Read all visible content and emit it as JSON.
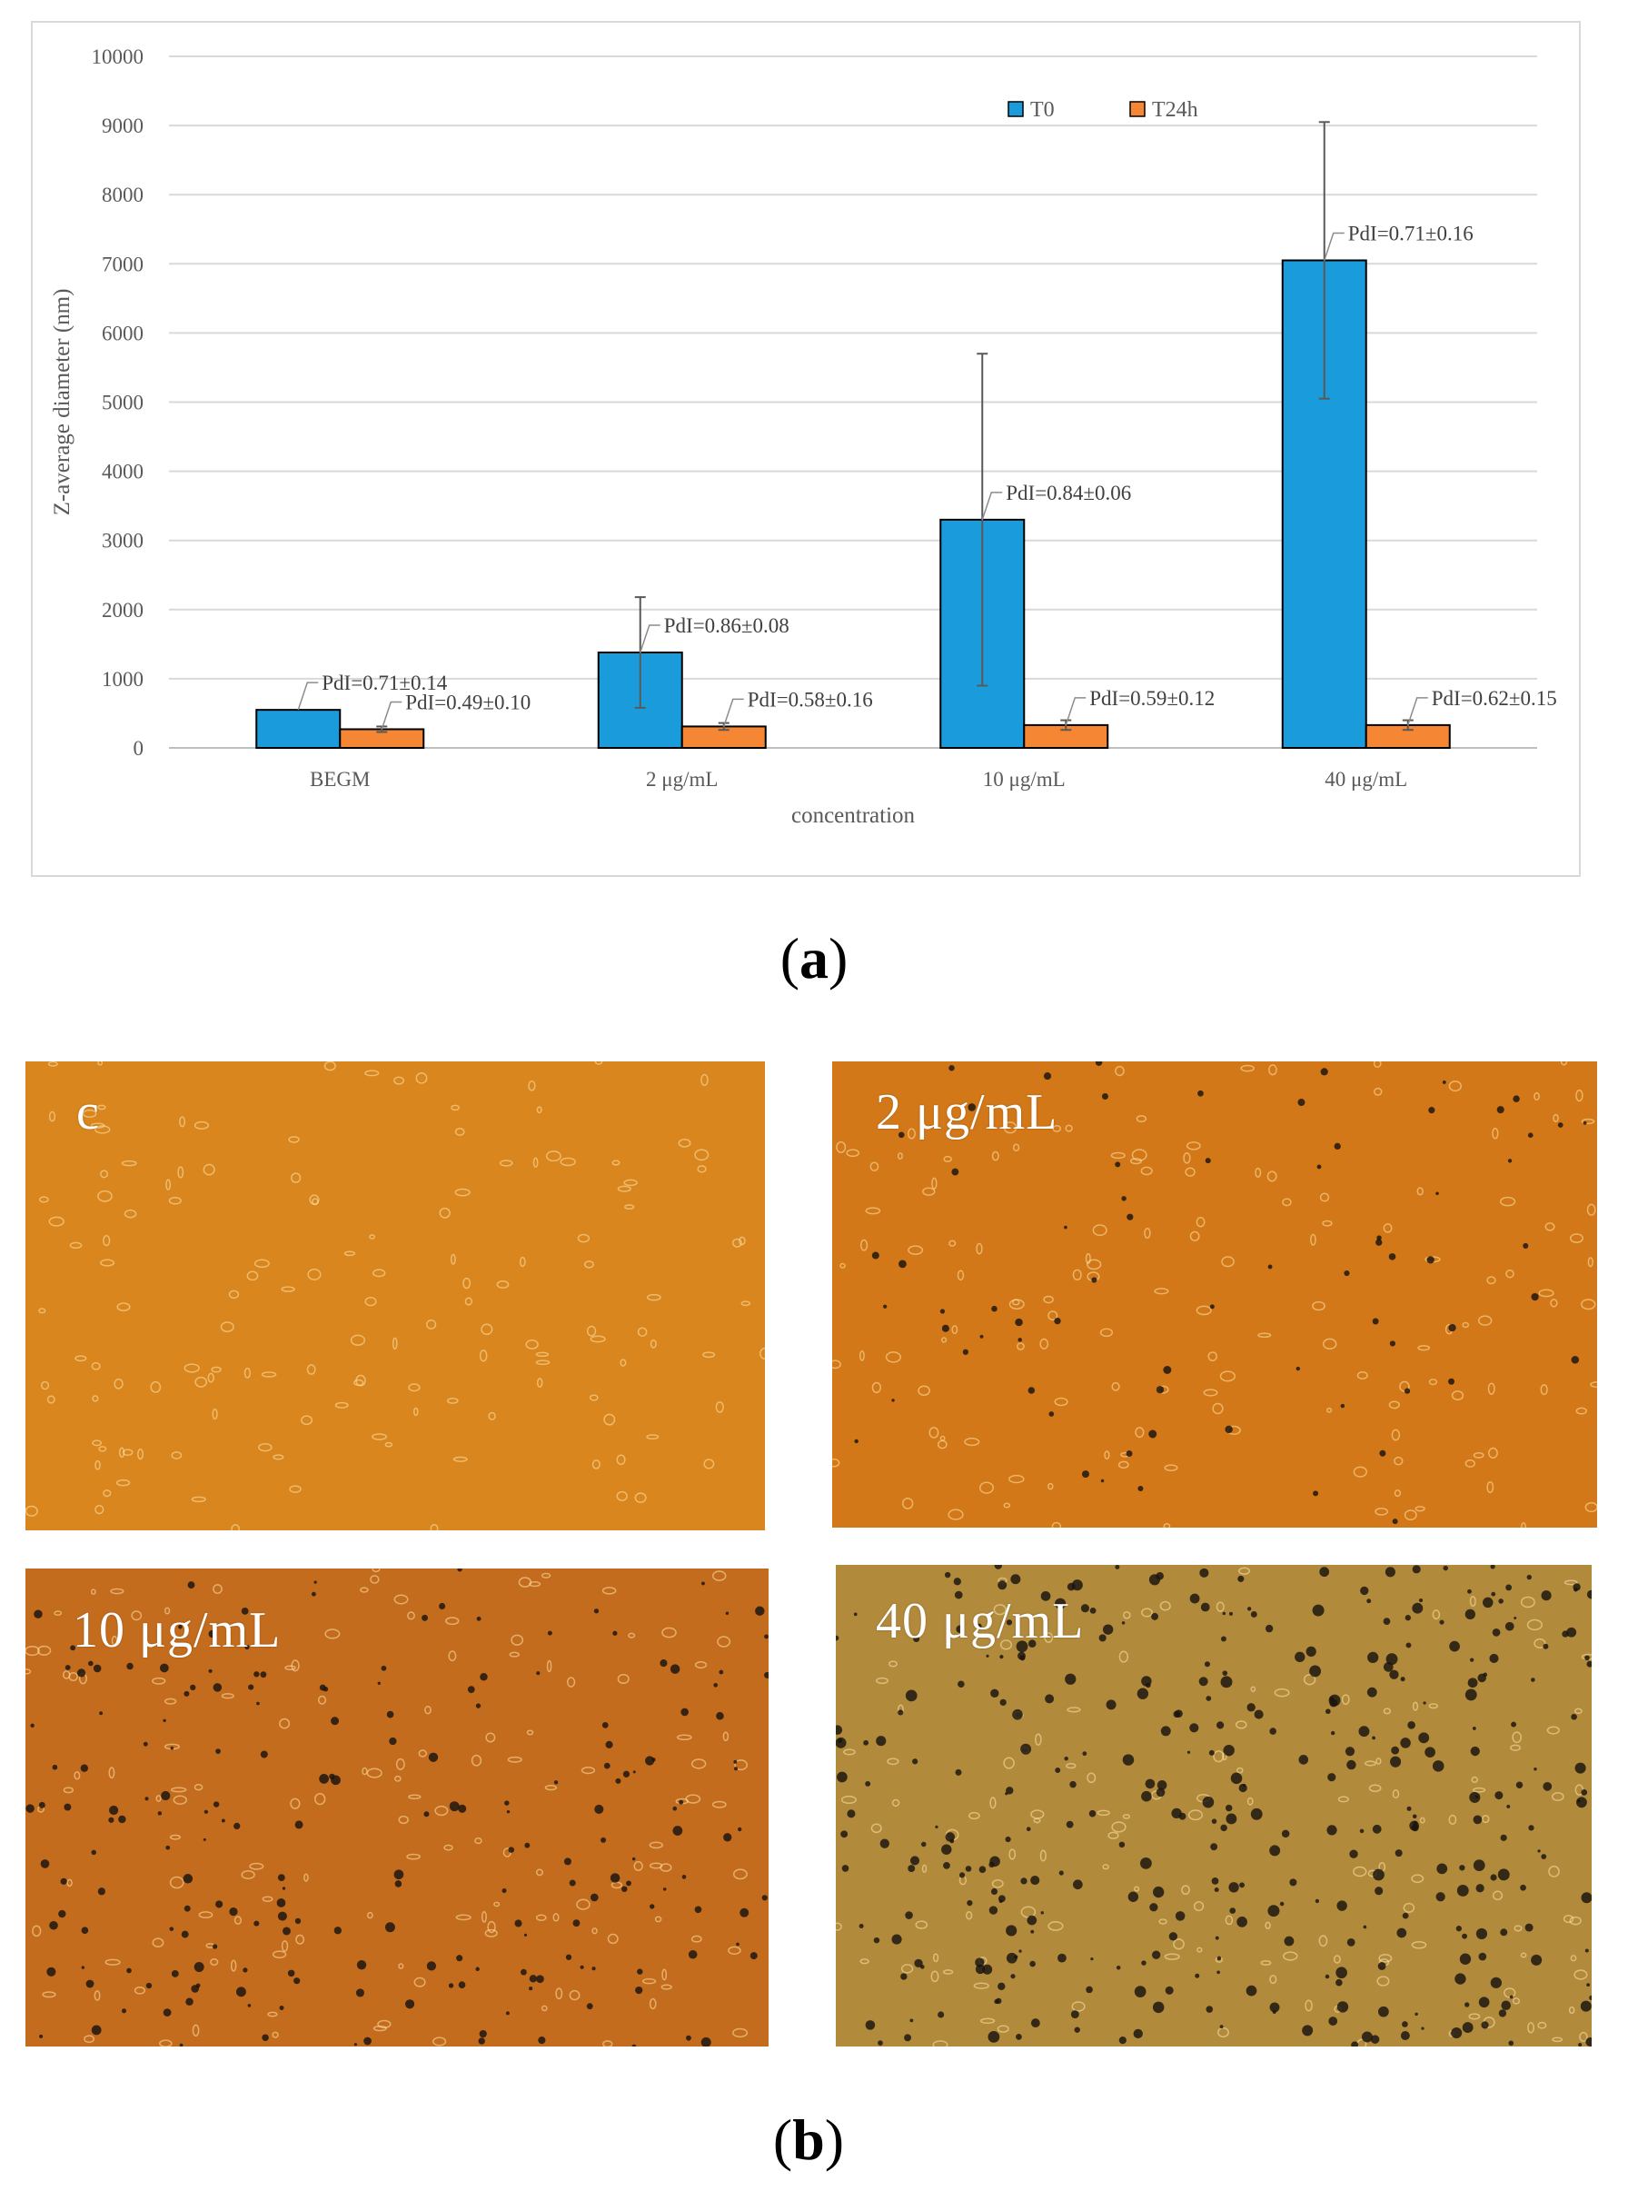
{
  "chart_data": {
    "type": "bar",
    "categories": [
      "BEGM",
      "2 μg/mL",
      "10 μg/mL",
      "40 μg/mL"
    ],
    "series": [
      {
        "name": "T0",
        "color": "#1a9bdb",
        "values": [
          550,
          1380,
          3300,
          7050
        ],
        "errors": [
          0,
          800,
          2400,
          2000
        ]
      },
      {
        "name": "T24h",
        "color": "#f58634",
        "values": [
          270,
          310,
          330,
          330
        ],
        "errors": [
          40,
          50,
          70,
          70
        ]
      }
    ],
    "pdi_labels": {
      "T0": [
        "PdI=0.71±0.14",
        "PdI=0.86±0.08",
        "PdI=0.84±0.06",
        "PdI=0.71±0.16"
      ],
      "T24h": [
        "PdI=0.49±0.10",
        "PdI=0.58±0.16",
        "PdI=0.59±0.12",
        "PdI=0.62±0.15"
      ]
    },
    "xlabel": "concentration",
    "ylabel": "Z-average diameter (nm)",
    "ylim": [
      0,
      10000
    ],
    "yticks": [
      0,
      1000,
      2000,
      3000,
      4000,
      5000,
      6000,
      7000,
      8000,
      9000,
      10000
    ],
    "grid": true,
    "legend_position": "top-right"
  },
  "panel_labels": {
    "a": "a",
    "b": "b"
  },
  "micrographs": [
    {
      "label": "c",
      "tone": "#d9861f",
      "density": 0
    },
    {
      "label": "2 μg/mL",
      "tone": "#d27818",
      "density": 1
    },
    {
      "label": "10 μg/mL",
      "tone": "#c46c1e",
      "density": 2
    },
    {
      "label": "40 μg/mL",
      "tone": "#b28a3c",
      "density": 3
    }
  ]
}
